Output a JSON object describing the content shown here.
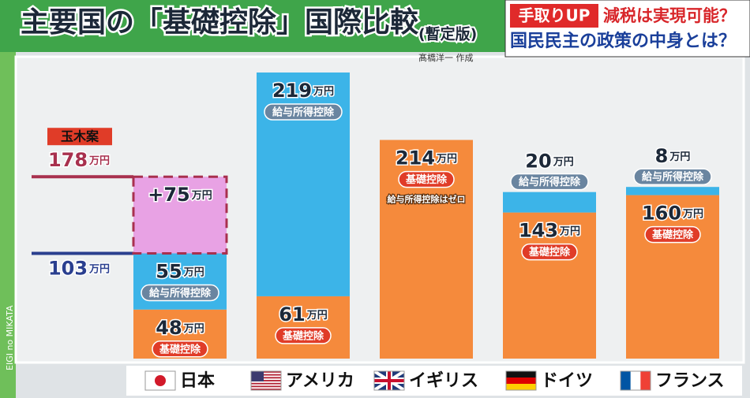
{
  "header": {
    "title": "主要国の「基礎控除」国際比較",
    "subtitle": "(暫定版)",
    "credit": "髙橋洋一 作成",
    "side_text": "EIGI no MIKATA"
  },
  "banner": {
    "tag": "手取りUP",
    "headline": "減税は実現可能？",
    "subline": "国民民主の政策の中身とは？"
  },
  "chart_data": {
    "type": "stacked_bar",
    "unit": "万円",
    "categories": [
      "日本",
      "アメリカ",
      "イギリス",
      "ドイツ",
      "フランス"
    ],
    "series": [
      {
        "name": "基礎控除",
        "color": "#f58a3c",
        "label_color": "#e03c28",
        "values": [
          48,
          61,
          214,
          143,
          160
        ]
      },
      {
        "name": "給与所得控除",
        "color": "#3cb4e8",
        "label_color": "#6a85a0",
        "values": [
          55,
          219,
          null,
          20,
          8
        ]
      },
      {
        "color": "#e8a2e4",
        "border_color": "#a8304e",
        "dashed": true,
        "values": [
          75,
          null,
          null,
          null,
          null
        ],
        "value_labels": [
          "+75",
          null,
          null,
          null,
          null
        ]
      }
    ],
    "annotation": "給与所得控除はゼロ",
    "reference_lines": [
      {
        "name": "玉木案",
        "value": 178,
        "color": "#a8304e"
      },
      {
        "value": 103,
        "color": "#2a3f8f"
      }
    ],
    "ylim": [
      0,
      280
    ]
  }
}
